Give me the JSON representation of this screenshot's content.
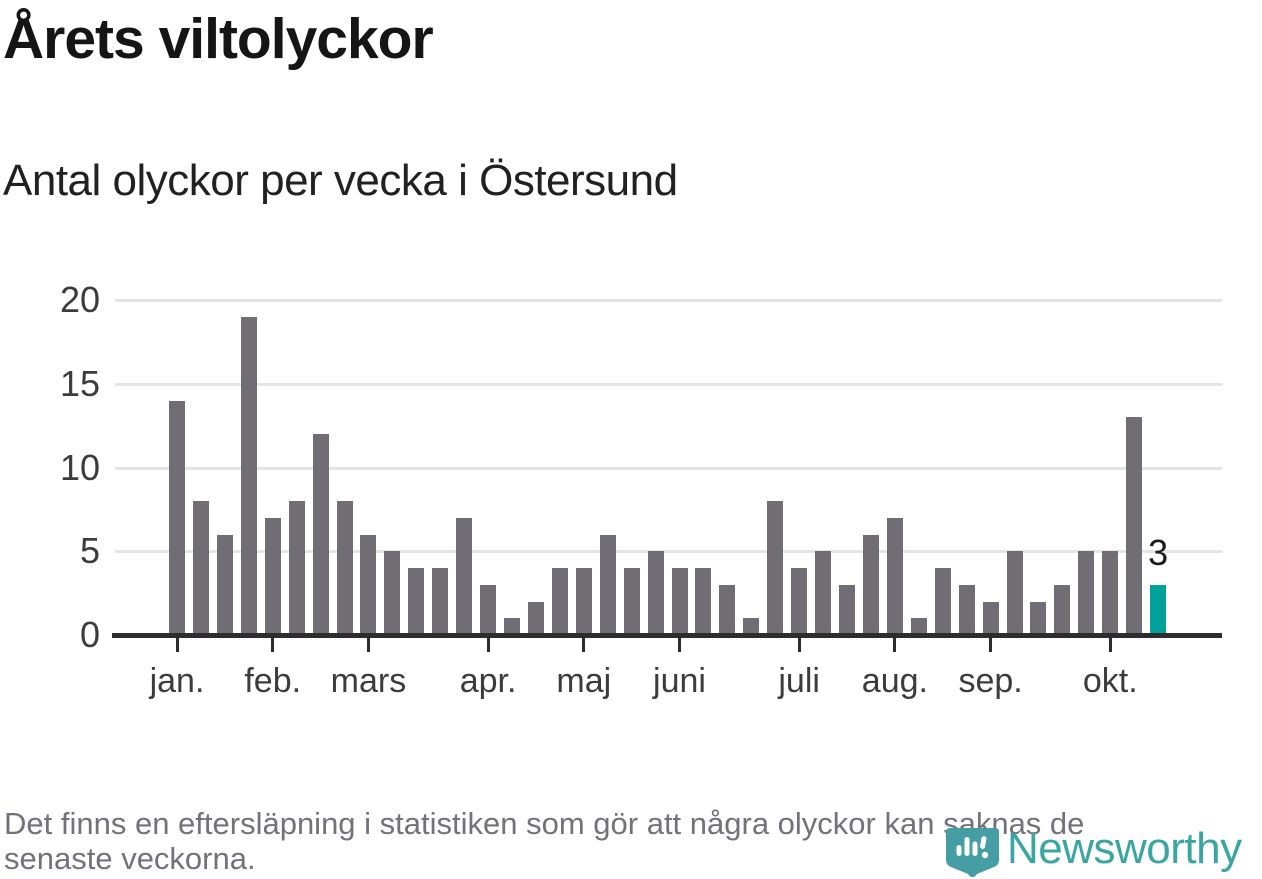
{
  "title": "Årets viltolyckor",
  "subtitle": "Antal olyckor per vecka i Östersund",
  "footer": {
    "text": "Det finns en eftersläpning i statistiken som gör att några olyckor kan saknas de senaste veckorna.",
    "lines": [
      "Det finns en eftersläpning i statistiken som gör att några olyckor kan saknas de",
      "senaste veckorna."
    ]
  },
  "branding": {
    "name": "Newsworthy",
    "icon": "newsworthy-badge-icon"
  },
  "colors": {
    "bar": "#716d74",
    "highlight": "#00a09b",
    "axis": "#2d2d2d",
    "gridline": "#e4e4e4",
    "axis_label": "#3c3c3c",
    "value_label": "#1a1a1a",
    "title_text": "#151515",
    "footer_text": "#73717a",
    "brand_teal": "#3aa6a2",
    "badge_teal": "#449ea3"
  },
  "chart_data": {
    "type": "bar",
    "title": "Årets viltolyckor",
    "subtitle": "Antal olyckor per vecka i Östersund",
    "xlabel": "",
    "ylabel": "",
    "x_unit": "vecka",
    "weeks": [
      1,
      2,
      3,
      4,
      5,
      6,
      7,
      8,
      9,
      10,
      11,
      12,
      13,
      14,
      15,
      16,
      17,
      18,
      19,
      20,
      21,
      22,
      23,
      24,
      25,
      26,
      27,
      28,
      29,
      30,
      31,
      32,
      33,
      34,
      35,
      36,
      37,
      38,
      39,
      40,
      41,
      42
    ],
    "values": [
      14,
      8,
      6,
      19,
      7,
      8,
      12,
      8,
      6,
      5,
      4,
      4,
      7,
      3,
      1,
      2,
      4,
      4,
      6,
      4,
      5,
      4,
      4,
      3,
      1,
      8,
      4,
      5,
      3,
      6,
      7,
      1,
      4,
      3,
      2,
      5,
      2,
      3,
      5,
      5,
      13,
      3
    ],
    "highlight_index": 41,
    "highlight_value_label": "3",
    "ylim": [
      0,
      20
    ],
    "yticks": [
      0,
      5,
      10,
      15,
      20
    ],
    "grid": "horizontal",
    "legend": "none",
    "month_ticks": [
      {
        "label": "jan.",
        "week": 1
      },
      {
        "label": "feb.",
        "week": 5
      },
      {
        "label": "mars",
        "week": 9
      },
      {
        "label": "apr.",
        "week": 14
      },
      {
        "label": "maj",
        "week": 18
      },
      {
        "label": "juni",
        "week": 22
      },
      {
        "label": "juli",
        "week": 27
      },
      {
        "label": "aug.",
        "week": 31
      },
      {
        "label": "sep.",
        "week": 35
      },
      {
        "label": "okt.",
        "week": 40
      }
    ]
  }
}
